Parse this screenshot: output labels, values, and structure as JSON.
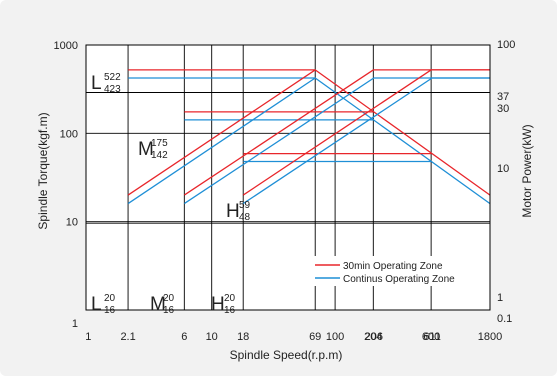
{
  "chart_data": {
    "type": "line",
    "xlabel": "Spindle Speed(r.p.m)",
    "ylabel": "Spindle Torque(kgf.m)",
    "y2label": "Motor Power(kW)",
    "x_scale": "log",
    "y_scale": "log",
    "xlim": [
      1,
      1800
    ],
    "ylim": [
      1,
      1000
    ],
    "x_ticks": [
      1,
      2.1,
      6,
      10,
      18,
      69,
      100,
      204,
      206,
      600,
      611,
      1800
    ],
    "y_ticks": [
      1,
      10,
      100,
      1000
    ],
    "y2_ticks": [
      "0.1",
      "1",
      "10",
      "30",
      "37",
      "100"
    ],
    "grid": true,
    "legend": {
      "position": "bottom-right",
      "entries": [
        {
          "name": "30min Operating Zone",
          "color": "#e8262b"
        },
        {
          "name": "Continus Operating Zone",
          "color": "#1f8fd6"
        }
      ]
    },
    "colors": {
      "thirty_min": "#e8262b",
      "continuous": "#1f8fd6"
    },
    "gear_labels": [
      {
        "gear": "L",
        "upper": "522",
        "lower": "423"
      },
      {
        "gear": "M",
        "upper": "175",
        "lower": "142"
      },
      {
        "gear": "H",
        "upper": "59",
        "lower": "48"
      },
      {
        "gear": "L",
        "upper": "20",
        "lower": "16"
      },
      {
        "gear": "M",
        "upper": "20",
        "lower": "16"
      },
      {
        "gear": "H",
        "upper": "20",
        "lower": "16"
      }
    ],
    "series": [
      {
        "name": "30min Operating Zone",
        "kind": "torque",
        "x": [
          2.1,
          69,
          1800
        ],
        "y": [
          522,
          522,
          20
        ]
      },
      {
        "name": "Continus Operating Zone",
        "kind": "torque",
        "x": [
          2.1,
          69,
          1800
        ],
        "y": [
          423,
          423,
          16
        ]
      },
      {
        "name": "30min Operating Zone",
        "kind": "torque",
        "x": [
          6,
          204
        ],
        "y": [
          175,
          175
        ]
      },
      {
        "name": "Continus Operating Zone",
        "kind": "torque",
        "x": [
          6,
          204
        ],
        "y": [
          142,
          142
        ]
      },
      {
        "name": "30min Operating Zone",
        "kind": "torque",
        "x": [
          18,
          600
        ],
        "y": [
          59,
          59
        ]
      },
      {
        "name": "Continus Operating Zone",
        "kind": "torque",
        "x": [
          18,
          600
        ],
        "y": [
          48,
          48
        ]
      },
      {
        "name": "30min Operating Zone",
        "kind": "power",
        "x": [
          2.1,
          69
        ],
        "y": [
          20,
          522
        ]
      },
      {
        "name": "Continus Operating Zone",
        "kind": "power",
        "x": [
          2.1,
          69
        ],
        "y": [
          16,
          423
        ]
      },
      {
        "name": "30min Operating Zone",
        "kind": "power",
        "x": [
          6,
          204,
          1800
        ],
        "y": [
          20,
          522,
          522
        ]
      },
      {
        "name": "Continus Operating Zone",
        "kind": "power",
        "x": [
          6,
          206,
          1800
        ],
        "y": [
          16,
          423,
          423
        ]
      },
      {
        "name": "30min Operating Zone",
        "kind": "power",
        "x": [
          18,
          600,
          1800
        ],
        "y": [
          20,
          522,
          522
        ]
      },
      {
        "name": "Continus Operating Zone",
        "kind": "power",
        "x": [
          18,
          611,
          1800
        ],
        "y": [
          16,
          423,
          423
        ]
      }
    ]
  }
}
